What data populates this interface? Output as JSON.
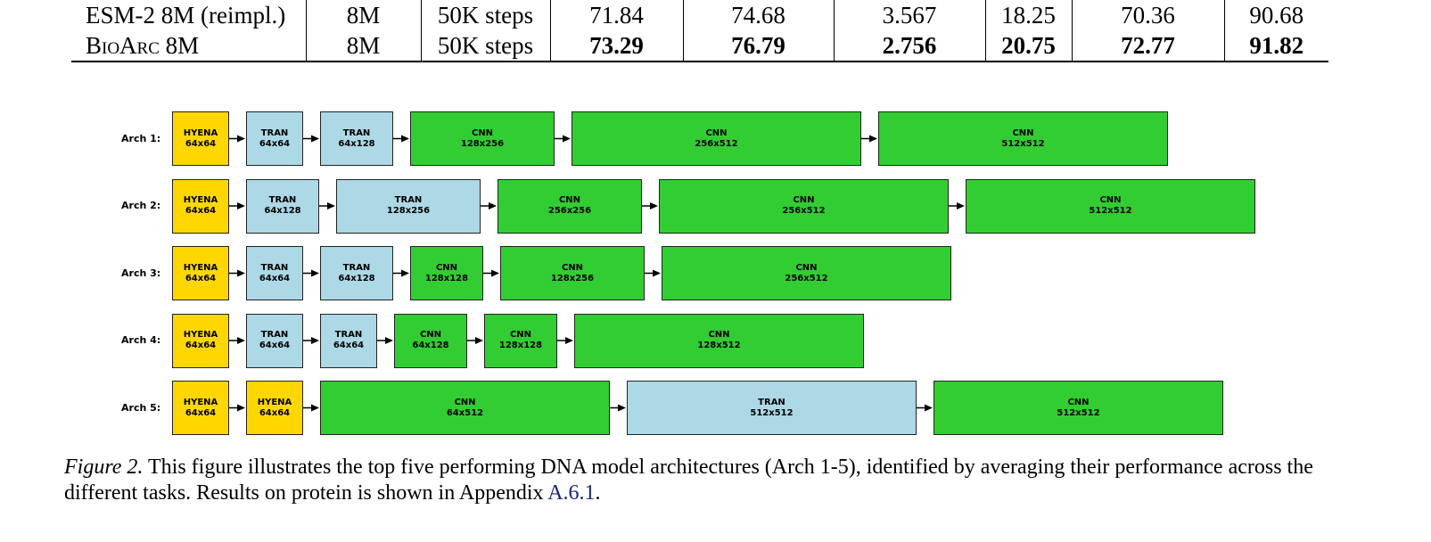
{
  "table": {
    "rows": [
      {
        "model": "ESM-2 8M (reimpl.)",
        "model_sc": "",
        "params": "8M",
        "steps": "50K steps",
        "values": [
          "71.84",
          "74.68",
          "3.567",
          "18.25",
          "70.36",
          "90.68"
        ]
      },
      {
        "model": "BioArc 8M",
        "model_sc": "BioArc",
        "model_rest": " 8M",
        "params": "8M",
        "steps": "50K steps",
        "values": [
          "73.29",
          "76.79",
          "2.756",
          "20.75",
          "72.77",
          "91.82"
        ]
      }
    ]
  },
  "figure": {
    "archs": [
      {
        "label": "Arch 1:",
        "blocks": [
          {
            "type": "hyena",
            "name": "HYENA",
            "dim": "64x64"
          },
          {
            "type": "tran",
            "name": "TRAN",
            "dim": "64x64"
          },
          {
            "type": "tran",
            "name": "TRAN",
            "dim": "64x128"
          },
          {
            "type": "cnn",
            "name": "CNN",
            "dim": "128x256"
          },
          {
            "type": "cnn",
            "name": "CNN",
            "dim": "256x512"
          },
          {
            "type": "cnn",
            "name": "CNN",
            "dim": "512x512"
          }
        ]
      },
      {
        "label": "Arch 2:",
        "blocks": [
          {
            "type": "hyena",
            "name": "HYENA",
            "dim": "64x64"
          },
          {
            "type": "tran",
            "name": "TRAN",
            "dim": "64x128"
          },
          {
            "type": "tran",
            "name": "TRAN",
            "dim": "128x256"
          },
          {
            "type": "cnn",
            "name": "CNN",
            "dim": "256x256"
          },
          {
            "type": "cnn",
            "name": "CNN",
            "dim": "256x512"
          },
          {
            "type": "cnn",
            "name": "CNN",
            "dim": "512x512"
          }
        ]
      },
      {
        "label": "Arch 3:",
        "blocks": [
          {
            "type": "hyena",
            "name": "HYENA",
            "dim": "64x64"
          },
          {
            "type": "tran",
            "name": "TRAN",
            "dim": "64x64"
          },
          {
            "type": "tran",
            "name": "TRAN",
            "dim": "64x128"
          },
          {
            "type": "cnn",
            "name": "CNN",
            "dim": "128x128"
          },
          {
            "type": "cnn",
            "name": "CNN",
            "dim": "128x256"
          },
          {
            "type": "cnn",
            "name": "CNN",
            "dim": "256x512"
          }
        ]
      },
      {
        "label": "Arch 4:",
        "blocks": [
          {
            "type": "hyena",
            "name": "HYENA",
            "dim": "64x64"
          },
          {
            "type": "tran",
            "name": "TRAN",
            "dim": "64x64"
          },
          {
            "type": "tran",
            "name": "TRAN",
            "dim": "64x64"
          },
          {
            "type": "cnn",
            "name": "CNN",
            "dim": "64x128"
          },
          {
            "type": "cnn",
            "name": "CNN",
            "dim": "128x128"
          },
          {
            "type": "cnn",
            "name": "CNN",
            "dim": "128x512"
          }
        ]
      },
      {
        "label": "Arch 5:",
        "blocks": [
          {
            "type": "hyena",
            "name": "HYENA",
            "dim": "64x64"
          },
          {
            "type": "hyena",
            "name": "HYENA",
            "dim": "64x64"
          },
          {
            "type": "cnn",
            "name": "CNN",
            "dim": "64x512"
          },
          {
            "type": "tran",
            "name": "TRAN",
            "dim": "512x512"
          },
          {
            "type": "cnn",
            "name": "CNN",
            "dim": "512x512"
          }
        ]
      }
    ],
    "colors": {
      "hyena": "#FFD700",
      "tran": "#ADD8E6",
      "cnn": "#32CD32"
    }
  },
  "caption": {
    "figure_ref": "Figure 2.",
    "text": " This figure illustrates the top five performing DNA model architectures (Arch 1-5), identified by averaging their performance across the different tasks. Results on protein is shown in Appendix ",
    "link_text": "A.6.1",
    "end": "."
  }
}
